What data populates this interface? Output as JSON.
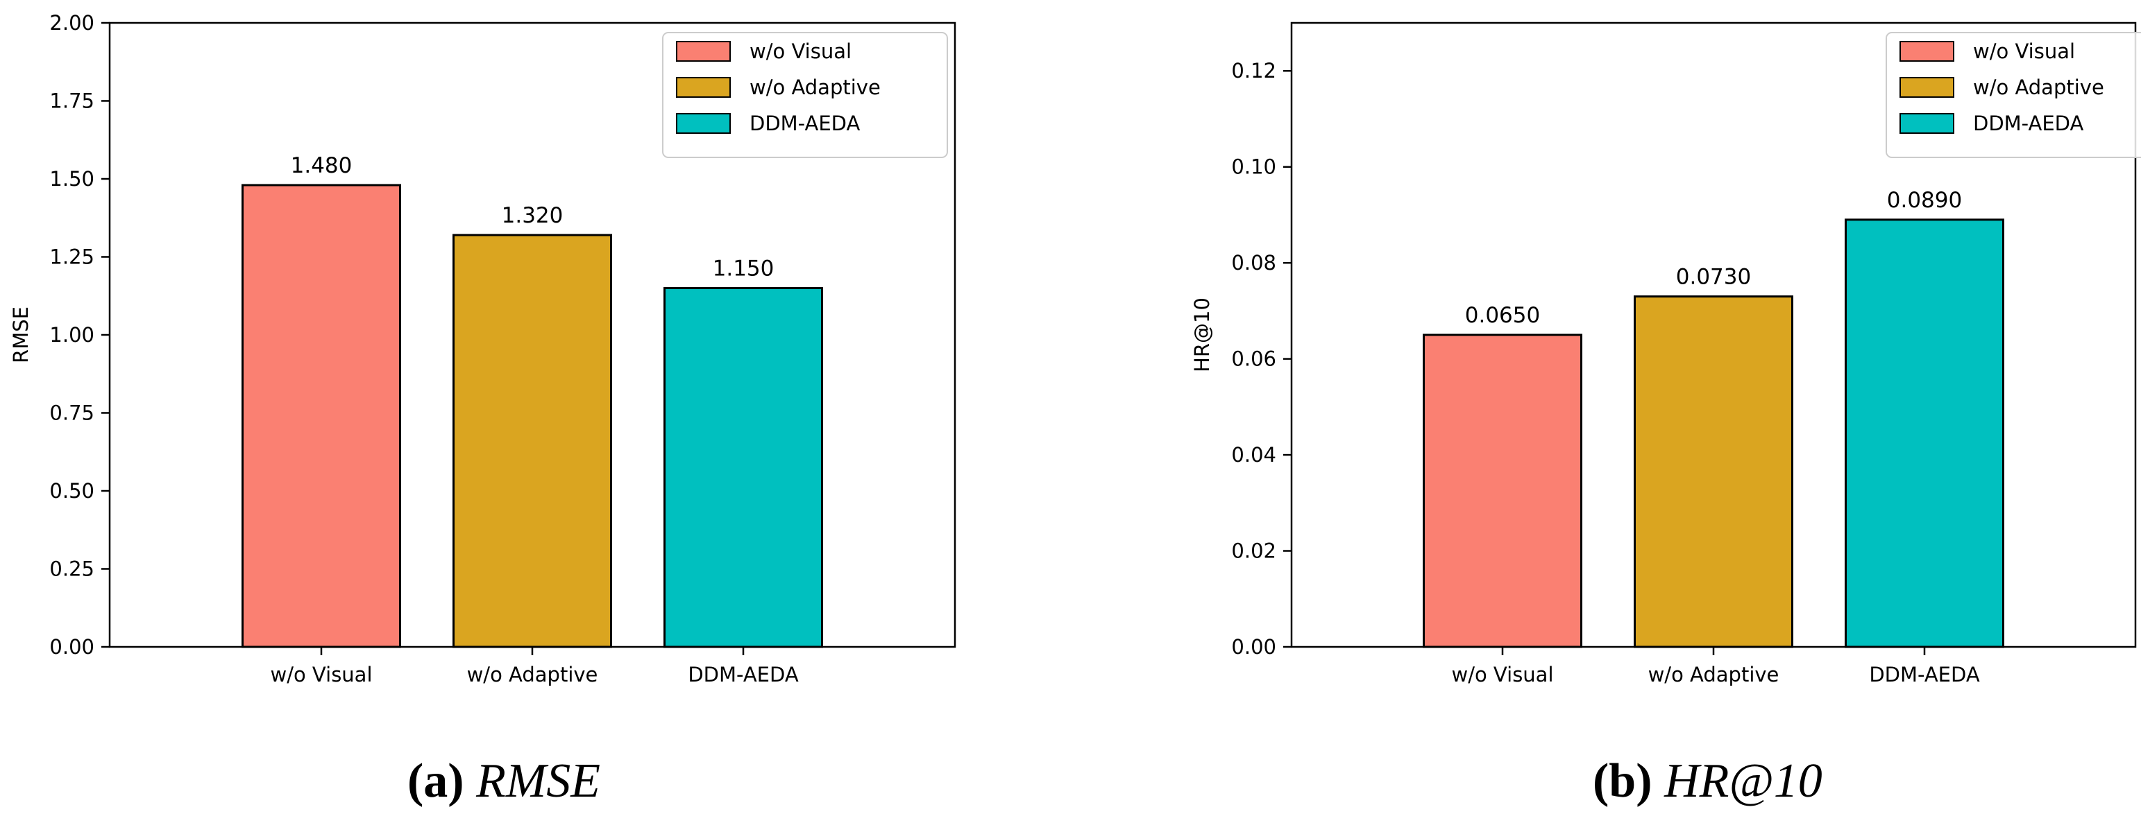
{
  "chart_data": [
    {
      "type": "bar",
      "title": "",
      "xlabel": "",
      "ylabel": "RMSE",
      "categories": [
        "w/o Visual",
        "w/o Adaptive",
        "DDM-AEDA"
      ],
      "values": [
        1.48,
        1.32,
        1.15
      ],
      "data_labels": [
        "1.480",
        "1.320",
        "1.150"
      ],
      "ylim": [
        0,
        2.0
      ],
      "yticks": [
        0.0,
        0.25,
        0.5,
        0.75,
        1.0,
        1.25,
        1.5,
        1.75,
        2.0
      ],
      "ytick_labels": [
        "0.00",
        "0.25",
        "0.50",
        "0.75",
        "1.00",
        "1.25",
        "1.50",
        "1.75",
        "2.00"
      ],
      "colors": [
        "#FA8072",
        "#DAA520",
        "#00C0BF"
      ],
      "legend": [
        "w/o Visual",
        "w/o Adaptive",
        "DDM-AEDA"
      ],
      "legend_position": "top-right",
      "grid": false
    },
    {
      "type": "bar",
      "title": "",
      "xlabel": "",
      "ylabel": "HR@10",
      "categories": [
        "w/o Visual",
        "w/o Adaptive",
        "DDM-AEDA"
      ],
      "values": [
        0.065,
        0.073,
        0.089
      ],
      "data_labels": [
        "0.0650",
        "0.0730",
        "0.0890"
      ],
      "ylim": [
        0,
        0.13
      ],
      "yticks": [
        0.0,
        0.02,
        0.04,
        0.06,
        0.08,
        0.1,
        0.12
      ],
      "ytick_labels": [
        "0.00",
        "0.02",
        "0.04",
        "0.06",
        "0.08",
        "0.10",
        "0.12"
      ],
      "colors": [
        "#FA8072",
        "#DAA520",
        "#00C0BF"
      ],
      "legend": [
        "w/o Visual",
        "w/o Adaptive",
        "DDM-AEDA"
      ],
      "legend_position": "top-right",
      "grid": false
    }
  ],
  "captions": [
    {
      "letter": "(a)",
      "metric": "RMSE"
    },
    {
      "letter": "(b)",
      "metric": "HR@10"
    }
  ]
}
